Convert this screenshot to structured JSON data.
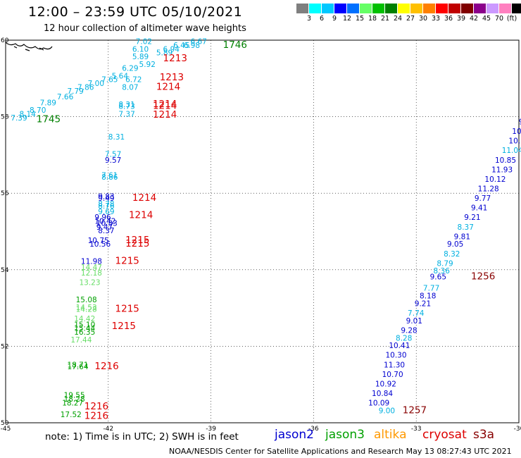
{
  "header": {
    "title": "12:00 – 23:59 UTC 05/10/2021",
    "subtitle": "12 hour collection of altimeter wave heights"
  },
  "colorbar": {
    "colors": [
      "#7f7f7f",
      "#00ffff",
      "#00c8ff",
      "#0000ff",
      "#0070ff",
      "#66ff66",
      "#00c000",
      "#008000",
      "#ffff00",
      "#ffc000",
      "#ff8000",
      "#ff0000",
      "#c00000",
      "#800000",
      "#8b008b",
      "#cc99ff",
      "#ff80c0",
      "#000000"
    ],
    "labels": [
      "3",
      "6",
      "9",
      "12",
      "15",
      "18",
      "21",
      "24",
      "27",
      "30",
      "33",
      "36",
      "39",
      "42",
      "45",
      "70",
      "(ft)"
    ]
  },
  "footer": {
    "note": "note:  1) Time is in UTC; 2) SWH is in feet",
    "credit": "NOAA/NESDIS Center for Satellite Applications and Research    May 13 08:27:43 UTC 2021"
  },
  "satellites": [
    {
      "name": "jason2",
      "color": "#0000d0"
    },
    {
      "name": "jason3",
      "color": "#00a000"
    },
    {
      "name": "altika",
      "color": "#ff9900"
    },
    {
      "name": "cryosat",
      "color": "#dd0000"
    },
    {
      "name": "s3a",
      "color": "#880000"
    }
  ],
  "chart_data": {
    "type": "scatter",
    "title": "12:00 – 23:59 UTC 05/10/2021",
    "subtitle": "12 hour collection of altimeter wave heights",
    "xlabel": "",
    "ylabel": "",
    "xlim": [
      -45,
      -30
    ],
    "ylim": [
      50,
      60
    ],
    "xticks": [
      "-45",
      "-42",
      "-39",
      "-36",
      "-33",
      "-30"
    ],
    "yticks": [
      "50",
      "52",
      "54",
      "56",
      "58",
      "60"
    ],
    "grid": true,
    "points": [
      {
        "lon": -39.6,
        "lat": 59.9,
        "text": "6.67",
        "color": "#00b0e0"
      },
      {
        "lon": -39.8,
        "lat": 59.8,
        "text": "6.98",
        "color": "#00b0e0"
      },
      {
        "lon": -40.1,
        "lat": 59.8,
        "text": "6.45",
        "color": "#00b0e0"
      },
      {
        "lon": -40.4,
        "lat": 59.7,
        "text": "6.94",
        "color": "#00b0e0"
      },
      {
        "lon": -40.6,
        "lat": 59.6,
        "text": "5.89",
        "color": "#00b0e0"
      },
      {
        "lon": -41.2,
        "lat": 59.9,
        "text": "7.02",
        "color": "#00b0e0"
      },
      {
        "lon": -41.3,
        "lat": 59.7,
        "text": "6.10",
        "color": "#00b0e0"
      },
      {
        "lon": -41.3,
        "lat": 59.5,
        "text": "5.89",
        "color": "#00b0e0"
      },
      {
        "lon": -41.1,
        "lat": 59.3,
        "text": "5.92",
        "color": "#00b0e0"
      },
      {
        "lon": -41.6,
        "lat": 59.2,
        "text": "6.29",
        "color": "#00b0e0"
      },
      {
        "lon": -41.9,
        "lat": 59.0,
        "text": "5.64",
        "color": "#00b0e0"
      },
      {
        "lon": -41.5,
        "lat": 58.9,
        "text": "6.72",
        "color": "#00b0e0"
      },
      {
        "lon": -42.2,
        "lat": 58.9,
        "text": "7.65",
        "color": "#00b0e0"
      },
      {
        "lon": -42.6,
        "lat": 58.8,
        "text": "7.00",
        "color": "#00b0e0"
      },
      {
        "lon": -42.9,
        "lat": 58.7,
        "text": "7.86",
        "color": "#00b0e0"
      },
      {
        "lon": -41.6,
        "lat": 58.7,
        "text": "8.07",
        "color": "#00b0e0"
      },
      {
        "lon": -43.2,
        "lat": 58.6,
        "text": "7.79",
        "color": "#00b0e0"
      },
      {
        "lon": -43.5,
        "lat": 58.45,
        "text": "7.66",
        "color": "#00b0e0"
      },
      {
        "lon": -41.7,
        "lat": 58.25,
        "text": "8.31",
        "color": "#00b0e0"
      },
      {
        "lon": -41.7,
        "lat": 58.2,
        "text": "8.73",
        "color": "#00b0e0"
      },
      {
        "lon": -41.7,
        "lat": 58.0,
        "text": "7.37",
        "color": "#00b0e0"
      },
      {
        "lon": -44.0,
        "lat": 58.3,
        "text": "7.89",
        "color": "#00b0e0"
      },
      {
        "lon": -44.3,
        "lat": 58.1,
        "text": "8.70",
        "color": "#00b0e0"
      },
      {
        "lon": -44.6,
        "lat": 58.0,
        "text": "8.14",
        "color": "#00b0e0"
      },
      {
        "lon": -44.85,
        "lat": 57.9,
        "text": "7.39",
        "color": "#00b0e0"
      },
      {
        "lon": -42.0,
        "lat": 57.4,
        "text": "8.31",
        "color": "#00b0e0"
      },
      {
        "lon": -42.1,
        "lat": 56.95,
        "text": "7.57",
        "color": "#00b0e0"
      },
      {
        "lon": -42.1,
        "lat": 56.8,
        "text": "9.57",
        "color": "#0000d0"
      },
      {
        "lon": -42.2,
        "lat": 56.4,
        "text": "7.61",
        "color": "#00b0e0"
      },
      {
        "lon": -42.2,
        "lat": 56.35,
        "text": "8.86",
        "color": "#00b0e0"
      },
      {
        "lon": -42.3,
        "lat": 55.85,
        "text": "9.83",
        "color": "#0000d0"
      },
      {
        "lon": -42.3,
        "lat": 55.8,
        "text": "9.49",
        "color": "#0000d0"
      },
      {
        "lon": -42.3,
        "lat": 55.65,
        "text": "8.78",
        "color": "#00b0e0"
      },
      {
        "lon": -42.3,
        "lat": 55.6,
        "text": "8.76",
        "color": "#00b0e0"
      },
      {
        "lon": -42.3,
        "lat": 55.45,
        "text": "9.69",
        "color": "#00b0e0"
      },
      {
        "lon": -42.4,
        "lat": 55.3,
        "text": "9.96",
        "color": "#0000d0"
      },
      {
        "lon": -42.4,
        "lat": 55.2,
        "text": "10.42",
        "color": "#0000d0"
      },
      {
        "lon": -42.35,
        "lat": 55.15,
        "text": "10.33",
        "color": "#0000d0"
      },
      {
        "lon": -42.35,
        "lat": 55.05,
        "text": "9.47",
        "color": "#0000d0"
      },
      {
        "lon": -42.3,
        "lat": 54.95,
        "text": "8.37",
        "color": "#0000d0"
      },
      {
        "lon": -42.6,
        "lat": 54.7,
        "text": "10.75",
        "color": "#0000d0"
      },
      {
        "lon": -42.55,
        "lat": 54.6,
        "text": "10.56",
        "color": "#0000d0"
      },
      {
        "lon": -42.8,
        "lat": 54.15,
        "text": "11.98",
        "color": "#0000d0"
      },
      {
        "lon": -42.8,
        "lat": 54.0,
        "text": "14.47",
        "color": "#66dd66"
      },
      {
        "lon": -42.8,
        "lat": 53.85,
        "text": "12.18",
        "color": "#66dd66"
      },
      {
        "lon": -42.85,
        "lat": 53.6,
        "text": "13.23",
        "color": "#66dd66"
      },
      {
        "lon": -42.95,
        "lat": 53.15,
        "text": "15.08",
        "color": "#00a000"
      },
      {
        "lon": -42.95,
        "lat": 52.95,
        "text": "14.53",
        "color": "#66dd66"
      },
      {
        "lon": -42.95,
        "lat": 52.9,
        "text": "14.28",
        "color": "#66dd66"
      },
      {
        "lon": -43.0,
        "lat": 52.65,
        "text": "14.42",
        "color": "#66dd66"
      },
      {
        "lon": -43.0,
        "lat": 52.5,
        "text": "15.10",
        "color": "#00a000"
      },
      {
        "lon": -43.0,
        "lat": 52.4,
        "text": "15.44",
        "color": "#00a000"
      },
      {
        "lon": -43.0,
        "lat": 52.3,
        "text": "16.35",
        "color": "#00a000"
      },
      {
        "lon": -43.1,
        "lat": 52.1,
        "text": "17.44",
        "color": "#66dd66"
      },
      {
        "lon": -43.2,
        "lat": 51.45,
        "text": "18.71",
        "color": "#00a000"
      },
      {
        "lon": -43.2,
        "lat": 51.4,
        "text": "17.64",
        "color": "#00a000"
      },
      {
        "lon": -43.3,
        "lat": 50.65,
        "text": "19.55",
        "color": "#00a000"
      },
      {
        "lon": -43.3,
        "lat": 50.55,
        "text": "18.28",
        "color": "#00a000"
      },
      {
        "lon": -43.35,
        "lat": 50.45,
        "text": "18.27",
        "color": "#00a000"
      },
      {
        "lon": -43.4,
        "lat": 50.15,
        "text": "17.52",
        "color": "#00a000"
      },
      {
        "lon": -30.0,
        "lat": 57.8,
        "text": "9",
        "color": "#0000d0"
      },
      {
        "lon": -30.2,
        "lat": 57.55,
        "text": "10.",
        "color": "#0000d0"
      },
      {
        "lon": -30.3,
        "lat": 57.3,
        "text": "10.3",
        "color": "#0000d0"
      },
      {
        "lon": -30.5,
        "lat": 57.05,
        "text": "11.04",
        "color": "#00b0e0"
      },
      {
        "lon": -30.7,
        "lat": 56.8,
        "text": "10.85",
        "color": "#0000d0"
      },
      {
        "lon": -30.8,
        "lat": 56.55,
        "text": "11.93",
        "color": "#0000d0"
      },
      {
        "lon": -31.0,
        "lat": 56.3,
        "text": "10.12",
        "color": "#0000d0"
      },
      {
        "lon": -31.2,
        "lat": 56.05,
        "text": "11.28",
        "color": "#0000d0"
      },
      {
        "lon": -31.3,
        "lat": 55.8,
        "text": "9.77",
        "color": "#0000d0"
      },
      {
        "lon": -31.4,
        "lat": 55.55,
        "text": "9.41",
        "color": "#0000d0"
      },
      {
        "lon": -31.6,
        "lat": 55.3,
        "text": "9.21",
        "color": "#0000d0"
      },
      {
        "lon": -31.8,
        "lat": 55.05,
        "text": "8.37",
        "color": "#00b0e0"
      },
      {
        "lon": -31.9,
        "lat": 54.8,
        "text": "9.81",
        "color": "#0000d0"
      },
      {
        "lon": -32.1,
        "lat": 54.6,
        "text": "9.05",
        "color": "#0000d0"
      },
      {
        "lon": -32.2,
        "lat": 54.35,
        "text": "8.32",
        "color": "#00b0e0"
      },
      {
        "lon": -32.4,
        "lat": 54.1,
        "text": "8.79",
        "color": "#00b0e0"
      },
      {
        "lon": -32.5,
        "lat": 53.9,
        "text": "8.36",
        "color": "#00b0e0"
      },
      {
        "lon": -32.6,
        "lat": 53.75,
        "text": "9.65",
        "color": "#0000d0"
      },
      {
        "lon": -32.8,
        "lat": 53.45,
        "text": "7.77",
        "color": "#00b0e0"
      },
      {
        "lon": -32.9,
        "lat": 53.25,
        "text": "8.18",
        "color": "#0000d0"
      },
      {
        "lon": -33.05,
        "lat": 53.05,
        "text": "9.21",
        "color": "#0000d0"
      },
      {
        "lon": -33.25,
        "lat": 52.8,
        "text": "7.74",
        "color": "#00b0e0"
      },
      {
        "lon": -33.3,
        "lat": 52.6,
        "text": "9.01",
        "color": "#0000d0"
      },
      {
        "lon": -33.45,
        "lat": 52.35,
        "text": "9.28",
        "color": "#0000d0"
      },
      {
        "lon": -33.6,
        "lat": 52.15,
        "text": "8.28",
        "color": "#00b0e0"
      },
      {
        "lon": -33.8,
        "lat": 51.95,
        "text": "10.41",
        "color": "#0000d0"
      },
      {
        "lon": -33.9,
        "lat": 51.7,
        "text": "10.30",
        "color": "#0000d0"
      },
      {
        "lon": -33.95,
        "lat": 51.45,
        "text": "11.30",
        "color": "#0000d0"
      },
      {
        "lon": -34.0,
        "lat": 51.2,
        "text": "10.70",
        "color": "#0000d0"
      },
      {
        "lon": -34.2,
        "lat": 50.95,
        "text": "10.92",
        "color": "#0000d0"
      },
      {
        "lon": -34.3,
        "lat": 50.7,
        "text": "10.84",
        "color": "#0000d0"
      },
      {
        "lon": -34.4,
        "lat": 50.45,
        "text": "10.09",
        "color": "#0000d0"
      },
      {
        "lon": -34.1,
        "lat": 50.25,
        "text": "9.00",
        "color": "#00b0e0"
      }
    ],
    "times": [
      {
        "lon": -38.65,
        "lat": 59.8,
        "text": "1746",
        "color": "#008000"
      },
      {
        "lon": -40.4,
        "lat": 59.45,
        "text": "1213",
        "color": "#dd0000"
      },
      {
        "lon": -40.5,
        "lat": 58.95,
        "text": "1213",
        "color": "#dd0000"
      },
      {
        "lon": -40.6,
        "lat": 58.7,
        "text": "1214",
        "color": "#dd0000"
      },
      {
        "lon": -40.7,
        "lat": 58.25,
        "text": "1214",
        "color": "#dd0000"
      },
      {
        "lon": -40.7,
        "lat": 58.2,
        "text": "1214",
        "color": "#dd0000"
      },
      {
        "lon": -40.7,
        "lat": 57.97,
        "text": "1214",
        "color": "#dd0000"
      },
      {
        "lon": -44.1,
        "lat": 57.85,
        "text": "1745",
        "color": "#008000"
      },
      {
        "lon": -41.3,
        "lat": 55.8,
        "text": "1214",
        "color": "#dd0000"
      },
      {
        "lon": -41.4,
        "lat": 55.35,
        "text": "1214",
        "color": "#dd0000"
      },
      {
        "lon": -41.5,
        "lat": 54.7,
        "text": "1215",
        "color": "#dd0000"
      },
      {
        "lon": -41.5,
        "lat": 54.6,
        "text": "1215",
        "color": "#dd0000"
      },
      {
        "lon": -41.8,
        "lat": 54.15,
        "text": "1215",
        "color": "#dd0000"
      },
      {
        "lon": -41.8,
        "lat": 52.9,
        "text": "1215",
        "color": "#dd0000"
      },
      {
        "lon": -41.9,
        "lat": 52.45,
        "text": "1215",
        "color": "#dd0000"
      },
      {
        "lon": -42.4,
        "lat": 51.4,
        "text": "1216",
        "color": "#dd0000"
      },
      {
        "lon": -42.7,
        "lat": 50.35,
        "text": "1216",
        "color": "#dd0000"
      },
      {
        "lon": -42.7,
        "lat": 50.1,
        "text": "1216",
        "color": "#dd0000"
      },
      {
        "lon": -31.4,
        "lat": 53.75,
        "text": "1256",
        "color": "#880000"
      },
      {
        "lon": -33.4,
        "lat": 50.25,
        "text": "1257",
        "color": "#880000"
      }
    ]
  }
}
